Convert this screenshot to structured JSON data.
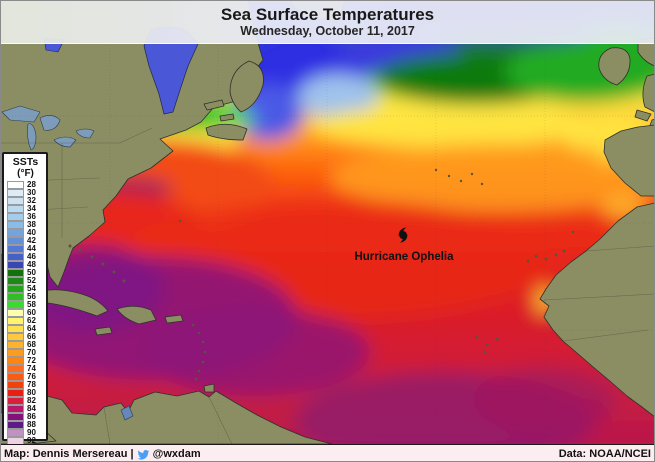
{
  "header": {
    "title": "Sea Surface Temperatures",
    "subtitle": "Wednesday, October 11, 2017"
  },
  "legend": {
    "title": "SSTs",
    "unit": "(°F)",
    "entries": [
      {
        "value": 28,
        "color": "#ffffff",
        "dots": false
      },
      {
        "value": 30,
        "color": "#ddeaf8",
        "dots": false
      },
      {
        "value": 32,
        "color": "#cfe2f4",
        "dots": true
      },
      {
        "value": 34,
        "color": "#badaf0",
        "dots": true
      },
      {
        "value": 36,
        "color": "#a4cdeb",
        "dots": true
      },
      {
        "value": 38,
        "color": "#8cbce6",
        "dots": true
      },
      {
        "value": 40,
        "color": "#74a4de",
        "dots": false
      },
      {
        "value": 42,
        "color": "#6590d8",
        "dots": false
      },
      {
        "value": 44,
        "color": "#5579d2",
        "dots": false
      },
      {
        "value": 46,
        "color": "#4660c8",
        "dots": false
      },
      {
        "value": 48,
        "color": "#3a46b4",
        "dots": false
      },
      {
        "value": 50,
        "color": "#12720f",
        "dots": false
      },
      {
        "value": 52,
        "color": "#1d8a15",
        "dots": false
      },
      {
        "value": 54,
        "color": "#26a31d",
        "dots": false
      },
      {
        "value": 56,
        "color": "#2fbe26",
        "dots": false
      },
      {
        "value": 58,
        "color": "#3cd930",
        "dots": false
      },
      {
        "value": 60,
        "color": "#ffffb2",
        "dots": false
      },
      {
        "value": 62,
        "color": "#fff46e",
        "dots": true
      },
      {
        "value": 64,
        "color": "#ffdf52",
        "dots": true
      },
      {
        "value": 66,
        "color": "#ffc93e",
        "dots": true
      },
      {
        "value": 68,
        "color": "#ffb22c",
        "dots": true
      },
      {
        "value": 70,
        "color": "#ff9c1e",
        "dots": true
      },
      {
        "value": 72,
        "color": "#ff8410",
        "dots": true
      },
      {
        "value": 74,
        "color": "#fb6d22",
        "dots": true
      },
      {
        "value": 76,
        "color": "#f75b16",
        "dots": true
      },
      {
        "value": 78,
        "color": "#f1410e",
        "dots": false
      },
      {
        "value": 80,
        "color": "#e62112",
        "dots": false
      },
      {
        "value": 82,
        "color": "#da1f3e",
        "dots": false
      },
      {
        "value": 84,
        "color": "#b8176b",
        "dots": false
      },
      {
        "value": 86,
        "color": "#83127b",
        "dots": false
      },
      {
        "value": 88,
        "color": "#5b1d85",
        "dots": true
      },
      {
        "value": 90,
        "color": "#c291c4",
        "dots": true
      },
      {
        "value": 92,
        "color": "#ecd3e4",
        "dots": true
      }
    ]
  },
  "map": {
    "hurricane_label": "Hurricane Ophelia"
  },
  "footer": {
    "map_credit": "Map: Dennis Mersereau |",
    "twitter_handle": "@wxdam",
    "data_credit": "Data: NOAA/NCEI"
  },
  "colors": {
    "twitter_blue": "#4a9ff5",
    "land": "#8b8d63",
    "caribbean_purple": "#8c1379",
    "open_atlantic_red": "#e62112"
  }
}
